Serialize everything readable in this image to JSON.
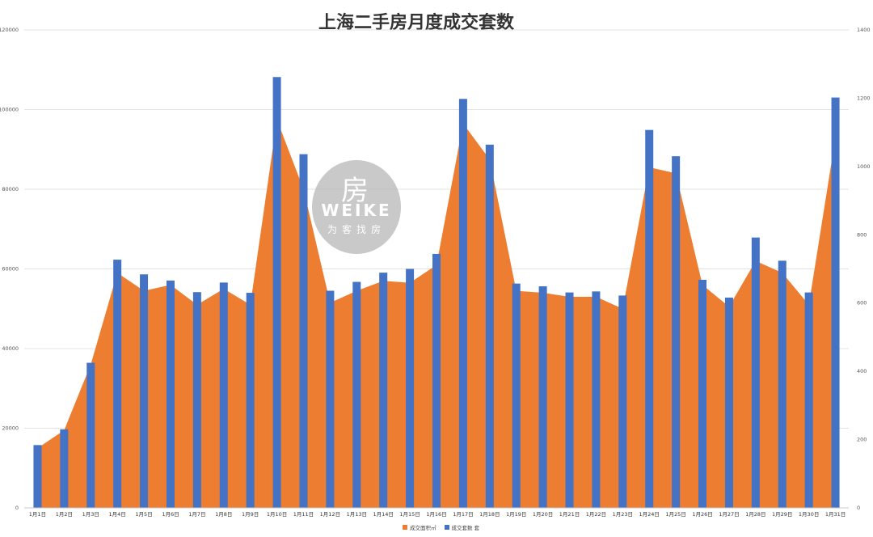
{
  "chart_data": {
    "type": "bar+area",
    "title": "上海二手房月度成交套数",
    "categories": [
      "1月1日",
      "1月2日",
      "1月3日",
      "1月4日",
      "1月5日",
      "1月6日",
      "1月7日",
      "1月8日",
      "1月9日",
      "1月10日",
      "1月11日",
      "1月12日",
      "1月13日",
      "1月14日",
      "1月15日",
      "1月16日",
      "1月17日",
      "1月18日",
      "1月19日",
      "1月20日",
      "1月21日",
      "1月22日",
      "1月23日",
      "1月24日",
      "1月25日",
      "1月26日",
      "1月27日",
      "1月28日",
      "1月29日",
      "1月30日",
      "1月31日"
    ],
    "series": [
      {
        "name": "成交面积㎡",
        "type": "area",
        "axis": "left",
        "color": "#ED7D31",
        "values": [
          15000,
          19500,
          36000,
          59000,
          54500,
          56000,
          51000,
          55000,
          51000,
          97500,
          80000,
          51500,
          54500,
          57000,
          56500,
          61000,
          96500,
          87500,
          54500,
          54000,
          53000,
          53000,
          50000,
          85500,
          84000,
          56000,
          50500,
          62000,
          59000,
          51000,
          93000
        ]
      },
      {
        "name": "成交套数 套",
        "type": "bar",
        "axis": "right",
        "color": "#4472C4",
        "values": [
          184,
          230,
          425,
          727,
          684,
          666,
          632,
          660,
          630,
          1262,
          1036,
          636,
          662,
          689,
          700,
          744,
          1198,
          1064,
          657,
          649,
          631,
          634,
          622,
          1107,
          1030,
          668,
          616,
          792,
          724,
          631,
          1202
        ]
      }
    ],
    "y_left": {
      "ticks": [
        "0",
        "20000",
        "40000",
        "60000",
        "80000",
        "100000",
        "120000"
      ],
      "range": [
        0,
        120000
      ]
    },
    "y_right": {
      "ticks": [
        "0",
        "200",
        "400",
        "600",
        "800",
        "1000",
        "1200",
        "1400"
      ],
      "range": [
        0,
        1400
      ]
    },
    "legend_position": "bottom",
    "grid": true
  },
  "watermark": {
    "glyph": "房",
    "brand": "WEIKE",
    "tagline": "为客找房"
  }
}
